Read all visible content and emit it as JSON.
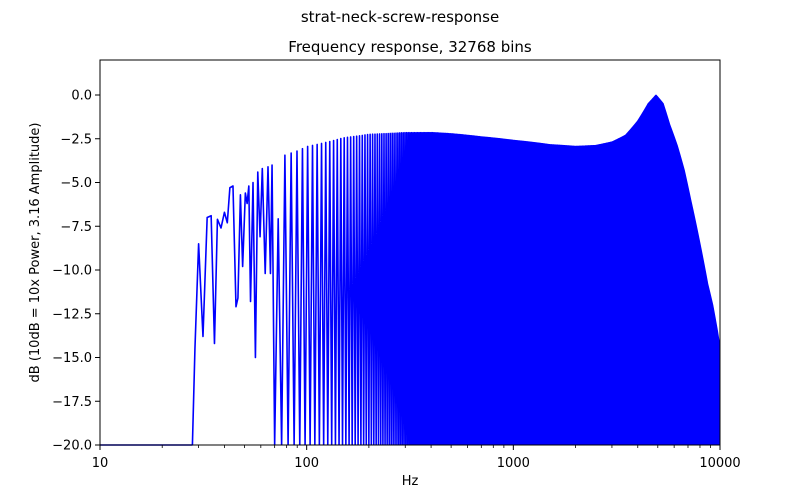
{
  "figure": {
    "suptitle": "strat-neck-screw-response"
  },
  "chart_data": {
    "type": "line",
    "title": "Frequency response, 32768 bins",
    "xlabel": "Hz",
    "ylabel": "dB (10dB = 10x Power, 3.16 Amplitude)",
    "xscale": "log",
    "xlim": [
      10,
      10000
    ],
    "ylim": [
      -20.0,
      2.0
    ],
    "grid": false,
    "legend": false,
    "x_ticks": [
      {
        "value": 10,
        "label": "10"
      },
      {
        "value": 100,
        "label": "100"
      },
      {
        "value": 1000,
        "label": "1000"
      },
      {
        "value": 10000,
        "label": "10000"
      }
    ],
    "y_ticks": [
      {
        "value": 0.0,
        "label": "0.0"
      },
      {
        "value": -2.5,
        "label": "−2.5"
      },
      {
        "value": -5.0,
        "label": "−5.0"
      },
      {
        "value": -7.5,
        "label": "−7.5"
      },
      {
        "value": -10.0,
        "label": "−10.0"
      },
      {
        "value": -12.5,
        "label": "−12.5"
      },
      {
        "value": -15.0,
        "label": "−15.0"
      },
      {
        "value": -17.5,
        "label": "−17.5"
      },
      {
        "value": -20.0,
        "label": "−20.0"
      }
    ],
    "series": [
      {
        "color": "#0000ff",
        "comb": {
          "first_hz": 28,
          "spacing_hz": 5.65,
          "floor_db": -20.0,
          "low_region_start_hz": 70,
          "points": [
            [
              28,
              -20.0
            ],
            [
              28.8,
              -14.5
            ],
            [
              30,
              -8.5
            ],
            [
              31.5,
              -13.8
            ],
            [
              33,
              -7.0
            ],
            [
              34.5,
              -6.9
            ],
            [
              35.8,
              -14.2
            ],
            [
              37,
              -7.1
            ],
            [
              38.5,
              -7.6
            ],
            [
              40,
              -6.7
            ],
            [
              41.3,
              -7.3
            ],
            [
              42.5,
              -5.3
            ],
            [
              44,
              -5.2
            ],
            [
              45.5,
              -12.1
            ],
            [
              46.5,
              -11.6
            ],
            [
              47.8,
              -5.7
            ],
            [
              49,
              -9.8
            ],
            [
              50.5,
              -5.6
            ],
            [
              51.5,
              -6.2
            ],
            [
              52.5,
              -5.2
            ],
            [
              53.5,
              -11.8
            ],
            [
              55,
              -5.0
            ],
            [
              56.5,
              -15.0
            ],
            [
              58,
              -4.4
            ],
            [
              59.5,
              -8.1
            ],
            [
              61,
              -4.2
            ],
            [
              63,
              -10.2
            ],
            [
              65,
              -4.1
            ],
            [
              66.8,
              -10.2
            ],
            [
              68,
              -4.0
            ],
            [
              70,
              -20.0
            ],
            [
              72,
              -3.9
            ],
            [
              74,
              -11.6
            ],
            [
              76,
              -3.5
            ],
            [
              80,
              -3.4
            ],
            [
              90,
              -3.2
            ],
            [
              100,
              -2.95
            ],
            [
              150,
              -2.45
            ],
            [
              200,
              -2.25
            ],
            [
              300,
              -2.15
            ],
            [
              400,
              -2.15
            ],
            [
              500,
              -2.22
            ],
            [
              700,
              -2.4
            ],
            [
              1000,
              -2.6
            ],
            [
              1500,
              -2.85
            ],
            [
              2000,
              -2.95
            ],
            [
              2500,
              -2.9
            ],
            [
              3000,
              -2.7
            ],
            [
              3500,
              -2.3
            ],
            [
              4000,
              -1.5
            ],
            [
              4500,
              -0.5
            ],
            [
              4900,
              -0.02
            ],
            [
              5300,
              -0.5
            ],
            [
              5700,
              -1.7
            ],
            [
              6200,
              -2.9
            ],
            [
              6700,
              -4.3
            ],
            [
              7200,
              -6.0
            ],
            [
              7700,
              -7.6
            ],
            [
              8200,
              -9.2
            ],
            [
              8700,
              -10.8
            ],
            [
              9200,
              -12.0
            ],
            [
              9700,
              -13.5
            ],
            [
              10000,
              -14.5
            ]
          ]
        }
      }
    ]
  }
}
